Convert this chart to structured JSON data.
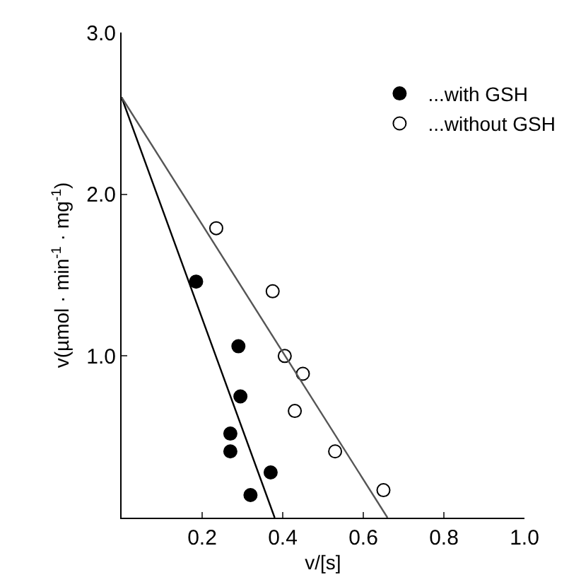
{
  "chart_data": {
    "type": "scatter",
    "xlabel": "v/[s]",
    "ylabel": "v(µmol · min$^{-1}$ · mg$^{-1}$)",
    "xlim": [
      0,
      1.0
    ],
    "ylim": [
      0,
      3.0
    ],
    "xticks": [
      0.2,
      0.4,
      0.6,
      0.8,
      {
        "value": 1.0,
        "label": "1.0"
      }
    ],
    "yticks": [
      {
        "value": 1.0,
        "label": "1.0"
      },
      {
        "value": 2.0,
        "label": "2.0"
      },
      {
        "value": 3.0,
        "label": "3.0"
      }
    ],
    "grid": false,
    "legend": "top right",
    "marker": "circle",
    "series": [
      {
        "name": "...with GSH",
        "color": "#000000",
        "x": [
          0.185,
          0.29,
          0.295,
          0.27,
          0.27,
          0.37,
          0.32
        ],
        "values": [
          1.46,
          1.06,
          0.75,
          0.52,
          0.41,
          0.28,
          0.14
        ]
      },
      {
        "name": "...without GSH",
        "color": "#000000",
        "marker": "circle-open",
        "x": [
          0.235,
          0.375,
          0.405,
          0.45,
          0.43,
          0.53,
          0.65
        ],
        "values": [
          1.79,
          1.4,
          1.0,
          0.89,
          0.66,
          0.41,
          0.17
        ]
      },
      {
        "type": "line",
        "color": "#000000",
        "marker": "none",
        "x": [
          0,
          0.38
        ],
        "values": [
          2.6,
          0
        ]
      },
      {
        "type": "line",
        "color": "#555555",
        "marker": "none",
        "x": [
          0,
          0.66
        ],
        "values": [
          2.6,
          0
        ]
      }
    ]
  }
}
